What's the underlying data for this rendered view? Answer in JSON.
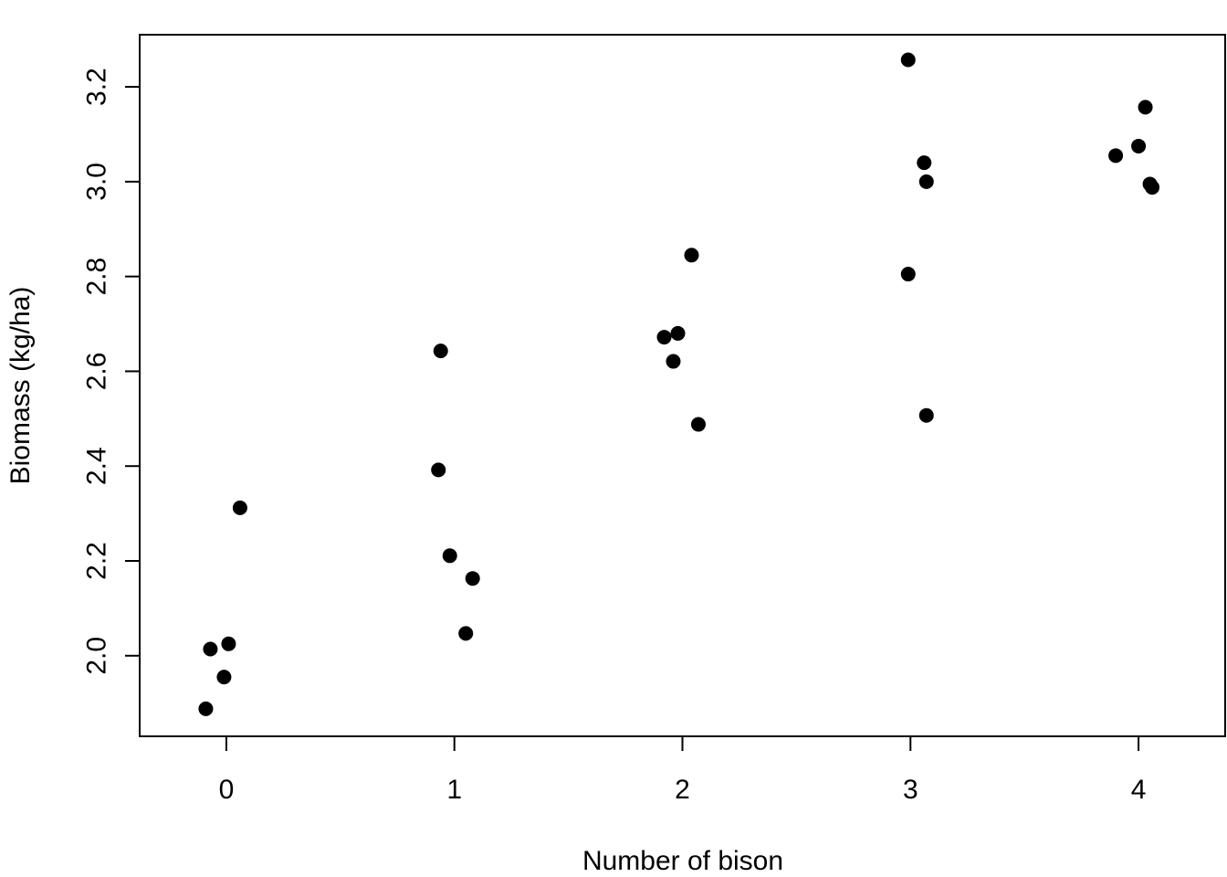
{
  "chart_data": {
    "type": "scatter",
    "title": "",
    "xlabel": "Number of bison",
    "ylabel": "Biomass (kg/ha)",
    "xlim": [
      -0.38,
      4.38
    ],
    "ylim": [
      1.83,
      3.31
    ],
    "xticks": [
      0,
      1,
      2,
      3,
      4
    ],
    "xtick_labels": [
      "0",
      "1",
      "2",
      "3",
      "4"
    ],
    "yticks": [
      2.0,
      2.2,
      2.4,
      2.6,
      2.8,
      3.0,
      3.2
    ],
    "ytick_labels": [
      "2.0",
      "2.2",
      "2.4",
      "2.6",
      "2.8",
      "3.0",
      "3.2"
    ],
    "grid": false,
    "legend": "none",
    "point_color": "#000000",
    "series": [
      {
        "points": [
          {
            "x": -0.09,
            "y": 1.888
          },
          {
            "x": -0.07,
            "y": 2.014
          },
          {
            "x": -0.01,
            "y": 1.955
          },
          {
            "x": 0.01,
            "y": 2.025
          },
          {
            "x": 0.06,
            "y": 2.312
          },
          {
            "x": 0.93,
            "y": 2.392
          },
          {
            "x": 0.94,
            "y": 2.643
          },
          {
            "x": 0.98,
            "y": 2.211
          },
          {
            "x": 1.05,
            "y": 2.047
          },
          {
            "x": 1.08,
            "y": 2.163
          },
          {
            "x": 1.92,
            "y": 2.672
          },
          {
            "x": 1.96,
            "y": 2.621
          },
          {
            "x": 1.98,
            "y": 2.68
          },
          {
            "x": 2.04,
            "y": 2.845
          },
          {
            "x": 2.07,
            "y": 2.488
          },
          {
            "x": 2.99,
            "y": 3.257
          },
          {
            "x": 2.99,
            "y": 2.805
          },
          {
            "x": 3.06,
            "y": 3.04
          },
          {
            "x": 3.07,
            "y": 3.0
          },
          {
            "x": 3.07,
            "y": 2.507
          },
          {
            "x": 3.9,
            "y": 3.055
          },
          {
            "x": 4.0,
            "y": 3.075
          },
          {
            "x": 4.03,
            "y": 3.157
          },
          {
            "x": 4.05,
            "y": 2.995
          },
          {
            "x": 4.06,
            "y": 2.988
          }
        ]
      }
    ]
  }
}
